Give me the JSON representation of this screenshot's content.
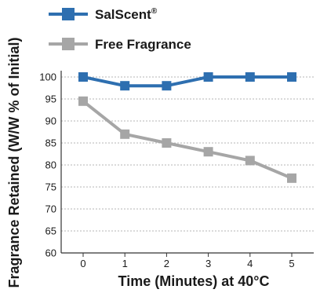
{
  "chart_data": {
    "type": "line",
    "title": "",
    "xlabel": "Time (Minutes) at 40°C",
    "ylabel": "Fragrance Retained (W/W % of Initial)",
    "x": [
      0,
      1,
      2,
      3,
      4,
      5
    ],
    "x_tick_labels": [
      "0",
      "1",
      "2",
      "3",
      "4",
      "5"
    ],
    "ylim": [
      60,
      100
    ],
    "y_ticks": [
      60,
      65,
      70,
      75,
      80,
      85,
      90,
      95,
      100
    ],
    "grid": "horizontal dashed",
    "legend_position": "top-left",
    "series": [
      {
        "name": "SalScent",
        "name_superscript": "®",
        "color": "#2e6fb0",
        "marker": "square",
        "values": [
          100,
          98,
          98,
          100,
          100,
          100
        ]
      },
      {
        "name": "Free Fragrance",
        "color": "#a6a6a6",
        "marker": "square",
        "values": [
          94.5,
          87,
          85,
          83,
          81,
          77
        ]
      }
    ]
  }
}
